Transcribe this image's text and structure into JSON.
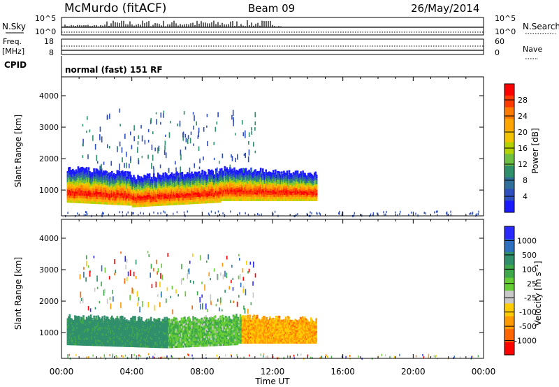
{
  "header": {
    "station": "McMurdo (fitACF)",
    "beam": "Beam 09",
    "date": "26/May/2014"
  },
  "top_panels": {
    "nsky_label": "N.Sky",
    "nsky_ticks": [
      "10^5",
      "10^0"
    ],
    "nsearch_label": "N.Search",
    "nsearch_ticks": [
      "10^5",
      "10^0"
    ],
    "freq_label": "Freq.",
    "freq_unit": "[MHz]",
    "freq_ticks": [
      "18",
      "8"
    ],
    "nave_label": "Nave",
    "nave_ticks": [
      "60",
      "0"
    ],
    "cpid_label": "CPID",
    "cpid_text": "normal (fast) 151 RF"
  },
  "chart_data": [
    {
      "type": "heatmap",
      "name": "power",
      "ylabel": "Slant Range [km]",
      "yticks": [
        1000,
        2000,
        3000,
        4000
      ],
      "ylim": [
        180,
        4600
      ],
      "xlim": [
        0,
        24
      ],
      "colorbar_label": "Power [dB]",
      "colorbar_ticks": [
        "28",
        "24",
        "20",
        "16",
        "12",
        "8",
        "4"
      ],
      "colorbar_colors": [
        "#ff0000",
        "#ff3a00",
        "#ff7a00",
        "#ffa500",
        "#f2c400",
        "#b3d200",
        "#6fbf43",
        "#2f8f6a",
        "#2f6f9a",
        "#2f4fbf",
        "#1a1aff"
      ],
      "bands": [
        {
          "t0": 0.3,
          "t1": 4.0,
          "r_low": [
            600,
            500
          ],
          "r_high": [
            1700,
            1500
          ]
        },
        {
          "t0": 4.0,
          "t1": 9.0,
          "r_low": [
            450,
            600
          ],
          "r_high": [
            1400,
            1600
          ]
        },
        {
          "t0": 9.0,
          "t1": 14.5,
          "r_low": [
            650,
            650
          ],
          "r_high": [
            1700,
            1500
          ]
        }
      ]
    },
    {
      "type": "heatmap",
      "name": "velocity",
      "ylabel": "Slant Range [km]",
      "yticks": [
        1000,
        2000,
        3000,
        4000
      ],
      "ylim": [
        180,
        4600
      ],
      "xlim": [
        0,
        24
      ],
      "xlabel": "Time UT",
      "xticks": [
        "00:00",
        "04:00",
        "08:00",
        "12:00",
        "16:00",
        "20:00",
        "00:00"
      ],
      "colorbar_label": "Velocity [m s⁻¹]",
      "colorbar_ticks": [
        "1000",
        "500",
        "100",
        "25",
        "-25",
        "-100",
        "-500",
        "-1000"
      ],
      "colorbar_colors": [
        "#2a2aff",
        "#2f6fbf",
        "#2f8f6a",
        "#3fa84a",
        "#66cc33",
        "#c8c8c8",
        "#ffcc00",
        "#ff9a00",
        "#ff6600",
        "#ff0000"
      ],
      "bands": [
        {
          "t0": 0.3,
          "t1": 6.0,
          "r_low": [
            600,
            500
          ],
          "r_high": [
            1500,
            1400
          ]
        },
        {
          "t0": 6.0,
          "t1": 10.0,
          "r_low": [
            500,
            600
          ],
          "r_high": [
            1400,
            1500
          ]
        },
        {
          "t0": 10.0,
          "t1": 14.5,
          "r_low": [
            650,
            650
          ],
          "r_high": [
            1500,
            1400
          ]
        }
      ]
    }
  ]
}
